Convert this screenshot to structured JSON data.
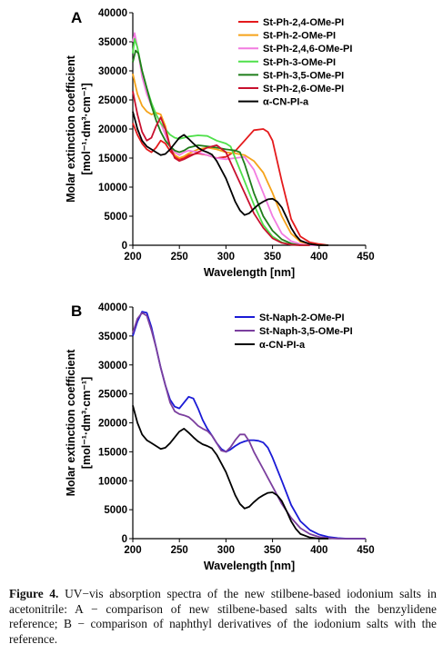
{
  "chart_data": [
    {
      "type": "line",
      "panel_label": "A",
      "xlabel": "Wavelength [nm]",
      "ylabel_line1": "Molar extinction coefficient",
      "ylabel_line2": "[mol⁻¹·dm³·cm⁻¹]",
      "xlim": [
        200,
        450
      ],
      "ylim": [
        0,
        40000
      ],
      "xticks": [
        200,
        250,
        300,
        350,
        400,
        450
      ],
      "yticks": [
        0,
        5000,
        10000,
        15000,
        20000,
        25000,
        30000,
        35000,
        40000
      ],
      "grid": false,
      "legend_position": "top-right",
      "series": [
        {
          "name": "St-Ph-2,4-OMe-PI",
          "color": "#e41a1c",
          "x": [
            200,
            205,
            210,
            215,
            220,
            225,
            230,
            235,
            240,
            245,
            250,
            255,
            260,
            270,
            280,
            290,
            300,
            310,
            320,
            330,
            340,
            345,
            350,
            360,
            370,
            380,
            390,
            400,
            410
          ],
          "y": [
            21000,
            19000,
            17500,
            16500,
            16000,
            16800,
            18000,
            17500,
            16200,
            15300,
            14800,
            15000,
            15500,
            15800,
            15500,
            15000,
            15200,
            16200,
            18000,
            19800,
            20000,
            19500,
            18000,
            11000,
            4500,
            1500,
            500,
            200,
            0
          ]
        },
        {
          "name": "St-Ph-2-OMe-PI",
          "color": "#f5a31a",
          "x": [
            200,
            205,
            210,
            215,
            220,
            225,
            230,
            235,
            240,
            245,
            250,
            255,
            260,
            270,
            280,
            290,
            300,
            310,
            320,
            330,
            340,
            350,
            360,
            370,
            380,
            390,
            400,
            410
          ],
          "y": [
            29500,
            26000,
            24000,
            23000,
            22500,
            22800,
            22500,
            20500,
            17000,
            15500,
            15000,
            15300,
            15800,
            16500,
            16800,
            16500,
            16000,
            15800,
            15500,
            14500,
            12500,
            9000,
            5000,
            2000,
            600,
            200,
            0,
            0
          ]
        },
        {
          "name": "St-Ph-2,4,6-OMe-PI",
          "color": "#f27be0",
          "x": [
            200,
            202,
            205,
            210,
            215,
            220,
            225,
            230,
            235,
            240,
            245,
            250,
            255,
            260,
            270,
            280,
            290,
            300,
            310,
            320,
            330,
            340,
            350,
            360,
            370,
            380,
            390,
            400
          ],
          "y": [
            35000,
            36500,
            34000,
            29000,
            26000,
            24000,
            22500,
            21000,
            19000,
            17000,
            16000,
            15500,
            16000,
            16300,
            16000,
            15500,
            15000,
            14800,
            15000,
            15200,
            13000,
            9000,
            5000,
            2000,
            700,
            200,
            0,
            0
          ]
        },
        {
          "name": "St-Ph-3-OMe-PI",
          "color": "#4fe04a",
          "x": [
            200,
            202,
            205,
            210,
            215,
            220,
            225,
            230,
            235,
            240,
            245,
            250,
            255,
            260,
            270,
            280,
            290,
            300,
            305,
            310,
            320,
            330,
            340,
            350,
            360,
            370,
            380,
            390
          ],
          "y": [
            33000,
            35500,
            34000,
            30000,
            27000,
            24500,
            22500,
            21000,
            20000,
            19000,
            18500,
            18300,
            18500,
            18700,
            18900,
            18800,
            18000,
            17500,
            17000,
            15000,
            11000,
            7000,
            3500,
            1500,
            500,
            100,
            0,
            0
          ]
        },
        {
          "name": "St-Ph-3,5-OMe-PI",
          "color": "#1f7d1a",
          "x": [
            200,
            203,
            206,
            210,
            215,
            220,
            225,
            230,
            235,
            240,
            245,
            250,
            255,
            260,
            265,
            270,
            280,
            290,
            300,
            310,
            315,
            320,
            330,
            340,
            350,
            360,
            370,
            380
          ],
          "y": [
            31500,
            33500,
            33000,
            30000,
            27000,
            24000,
            21500,
            19500,
            18000,
            17000,
            16300,
            16000,
            16300,
            16800,
            17000,
            17200,
            17000,
            16800,
            16500,
            16300,
            16000,
            14000,
            9000,
            5000,
            2500,
            1000,
            300,
            0
          ]
        },
        {
          "name": "St-Ph-2,6-OMe-PI",
          "color": "#c8102e",
          "x": [
            200,
            205,
            210,
            215,
            220,
            225,
            230,
            235,
            240,
            245,
            250,
            255,
            260,
            270,
            280,
            290,
            300,
            310,
            320,
            330,
            340,
            350,
            360,
            370,
            380,
            390
          ],
          "y": [
            26500,
            22500,
            19500,
            18000,
            18500,
            20500,
            22000,
            20000,
            17000,
            15000,
            14500,
            14800,
            15200,
            16000,
            16800,
            17200,
            16000,
            12500,
            9000,
            5500,
            3000,
            1200,
            400,
            100,
            0,
            0
          ]
        },
        {
          "name": "α-CN-PI-a",
          "color": "#000000",
          "x": [
            200,
            205,
            210,
            215,
            220,
            225,
            230,
            235,
            240,
            245,
            250,
            255,
            260,
            265,
            270,
            275,
            280,
            285,
            290,
            295,
            300,
            305,
            310,
            315,
            320,
            325,
            330,
            335,
            340,
            345,
            350,
            355,
            360,
            365,
            370,
            375,
            380,
            390,
            400,
            410
          ],
          "y": [
            23000,
            20000,
            18000,
            17000,
            16500,
            16000,
            15500,
            15700,
            16500,
            17500,
            18500,
            19000,
            18300,
            17500,
            16800,
            16300,
            16000,
            15600,
            14500,
            13000,
            11500,
            9500,
            7500,
            6000,
            5200,
            5500,
            6300,
            7000,
            7500,
            7900,
            8000,
            7500,
            6500,
            4800,
            3000,
            1700,
            800,
            200,
            0,
            0
          ]
        }
      ]
    },
    {
      "type": "line",
      "panel_label": "B",
      "xlabel": "Wavelength [nm]",
      "ylabel_line1": "Molar extinction coefficient",
      "ylabel_line2": "[mol⁻¹·dm³·cm⁻¹]",
      "xlim": [
        200,
        450
      ],
      "ylim": [
        0,
        40000
      ],
      "xticks": [
        200,
        250,
        300,
        350,
        400,
        450
      ],
      "yticks": [
        0,
        5000,
        10000,
        15000,
        20000,
        25000,
        30000,
        35000,
        40000
      ],
      "grid": false,
      "legend_position": "top-right",
      "series": [
        {
          "name": "St-Naph-2-OMe-PI",
          "color": "#1a1ad6",
          "x": [
            200,
            205,
            210,
            215,
            220,
            225,
            230,
            235,
            240,
            245,
            250,
            255,
            260,
            265,
            270,
            275,
            280,
            285,
            290,
            295,
            300,
            305,
            310,
            315,
            320,
            325,
            330,
            335,
            340,
            345,
            350,
            360,
            370,
            380,
            390,
            400,
            410,
            420,
            430,
            440,
            450
          ],
          "y": [
            35000,
            37500,
            39200,
            39000,
            36500,
            33000,
            29500,
            26500,
            24000,
            22800,
            22500,
            23500,
            24500,
            24200,
            22500,
            20500,
            19000,
            17800,
            16500,
            15500,
            15000,
            15400,
            16000,
            16500,
            16800,
            17000,
            17000,
            16900,
            16600,
            15700,
            14000,
            10000,
            5800,
            3000,
            1500,
            700,
            300,
            100,
            0,
            0,
            0
          ]
        },
        {
          "name": "St-Naph-3,5-OMe-PI",
          "color": "#7b3f9e",
          "x": [
            200,
            205,
            210,
            215,
            220,
            225,
            230,
            235,
            240,
            245,
            250,
            255,
            260,
            265,
            270,
            275,
            280,
            285,
            290,
            295,
            300,
            305,
            310,
            315,
            320,
            325,
            330,
            335,
            340,
            345,
            350,
            360,
            370,
            380,
            390,
            400,
            410,
            420,
            430,
            440,
            450
          ],
          "y": [
            35500,
            38000,
            39000,
            38500,
            36000,
            33000,
            29500,
            26500,
            23500,
            22000,
            21500,
            21300,
            21000,
            20300,
            19500,
            19000,
            18600,
            17800,
            16500,
            15200,
            15000,
            15800,
            17000,
            18000,
            18000,
            16800,
            15000,
            13500,
            12000,
            10500,
            9000,
            6000,
            3600,
            1800,
            800,
            300,
            100,
            0,
            0,
            0,
            0
          ]
        },
        {
          "name": "α-CN-PI-a",
          "color": "#000000",
          "x": [
            200,
            205,
            210,
            215,
            220,
            225,
            230,
            235,
            240,
            245,
            250,
            255,
            260,
            265,
            270,
            275,
            280,
            285,
            290,
            295,
            300,
            305,
            310,
            315,
            320,
            325,
            330,
            335,
            340,
            345,
            350,
            355,
            360,
            365,
            370,
            375,
            380,
            390,
            400,
            410
          ],
          "y": [
            23000,
            20000,
            18000,
            17000,
            16500,
            16000,
            15500,
            15700,
            16500,
            17500,
            18500,
            19000,
            18300,
            17500,
            16800,
            16300,
            16000,
            15600,
            14500,
            13000,
            11500,
            9500,
            7500,
            6000,
            5200,
            5500,
            6300,
            7000,
            7500,
            7900,
            8000,
            7500,
            6500,
            4800,
            3000,
            1700,
            800,
            200,
            0,
            0
          ]
        }
      ]
    }
  ],
  "caption": {
    "label": "Figure 4.",
    "text": " UV−vis absorption spectra of the new stilbene-based iodonium salts in acetonitrile: A − comparison of new stilbene-based salts with the benzylidene reference; B − comparison of naphthyl derivatives of the iodonium salts with the reference."
  }
}
